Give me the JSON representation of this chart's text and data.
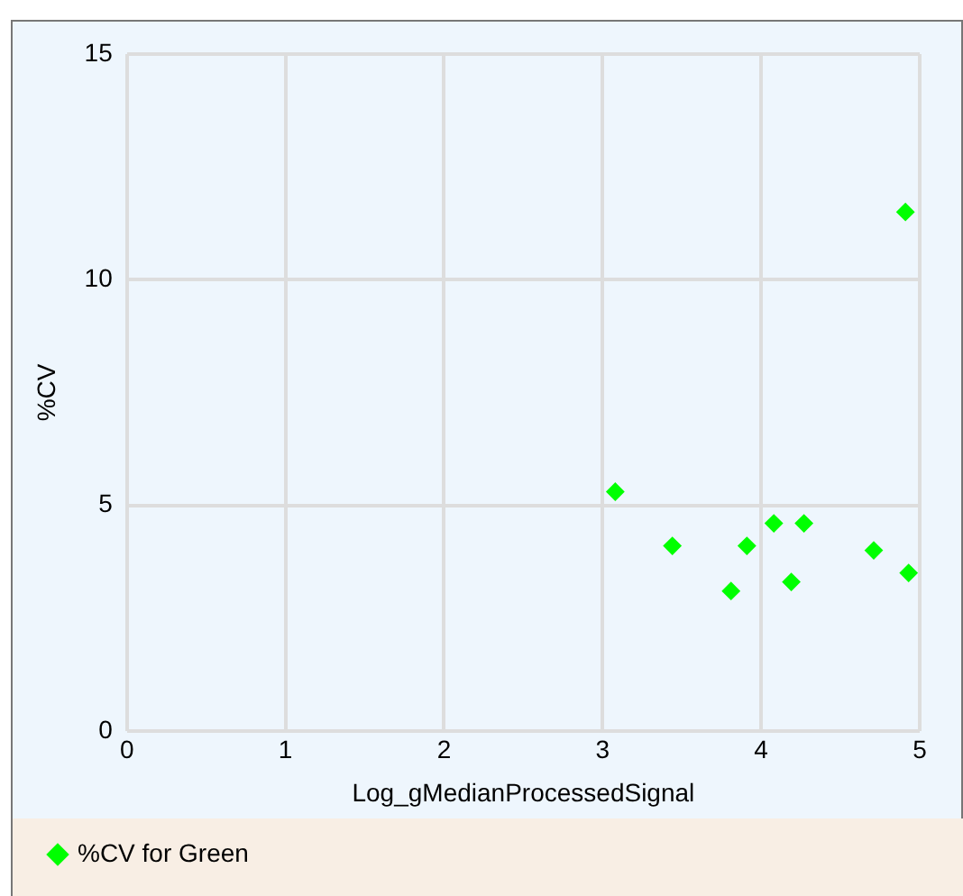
{
  "chart_data": {
    "type": "scatter",
    "xlabel": "Log_gMedianProcessedSignal",
    "ylabel": "%CV",
    "series": [
      {
        "name": "%CV for Green",
        "color": "#00ff00",
        "x": [
          3.08,
          3.44,
          3.91,
          3.81,
          4.08,
          4.27,
          4.19,
          4.71,
          4.93,
          4.91
        ],
        "values": [
          5.3,
          4.1,
          4.1,
          3.1,
          4.6,
          4.6,
          3.3,
          4.0,
          3.5,
          11.5
        ]
      }
    ],
    "xlim": [
      0,
      5
    ],
    "xticks": [
      0,
      1,
      2,
      3,
      4,
      5
    ],
    "ylim": [
      0,
      15
    ],
    "yticks": [
      0,
      5,
      10,
      15
    ],
    "grid": true,
    "legend": "bottom",
    "marker": "diamond"
  }
}
